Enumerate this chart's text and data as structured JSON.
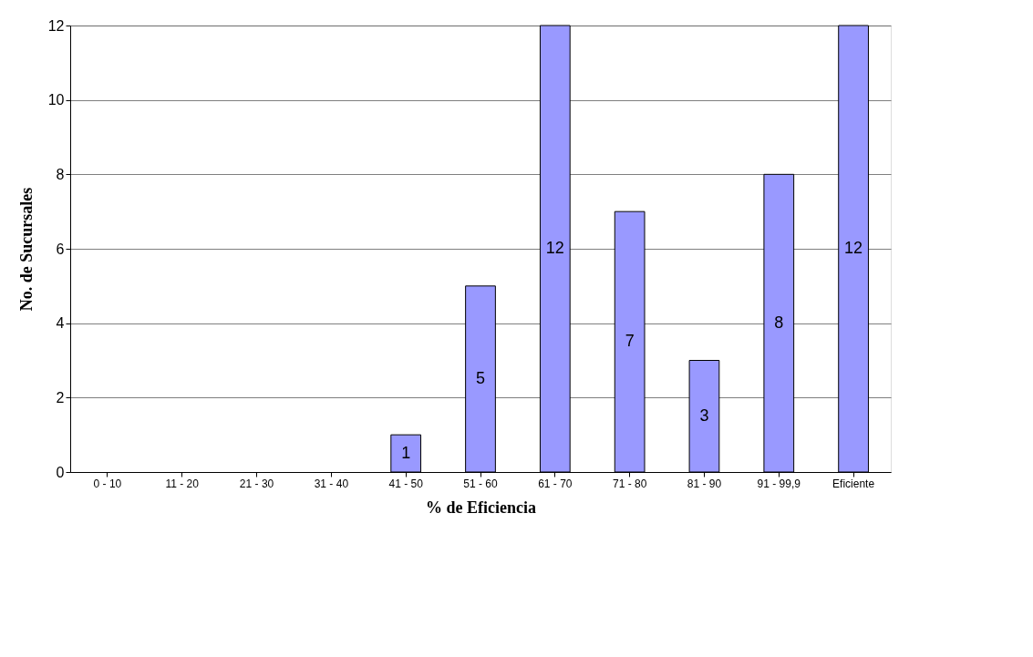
{
  "chart_data": {
    "type": "bar",
    "xlabel": "% de Eficiencia",
    "ylabel": "No. de Sucursales",
    "categories": [
      "0 - 10",
      "11 - 20",
      "21 - 30",
      "31 - 40",
      "41 - 50",
      "51 - 60",
      "61 - 70",
      "71 - 80",
      "81 - 90",
      "91 - 99,9",
      "Eficiente"
    ],
    "values": [
      null,
      null,
      null,
      null,
      1,
      5,
      12,
      7,
      3,
      8,
      12
    ],
    "color": "#9999ff",
    "ylim": [
      0,
      12
    ],
    "yticks": [
      0,
      2,
      4,
      6,
      8,
      10,
      12
    ],
    "grid": "y",
    "data_labels": true
  }
}
